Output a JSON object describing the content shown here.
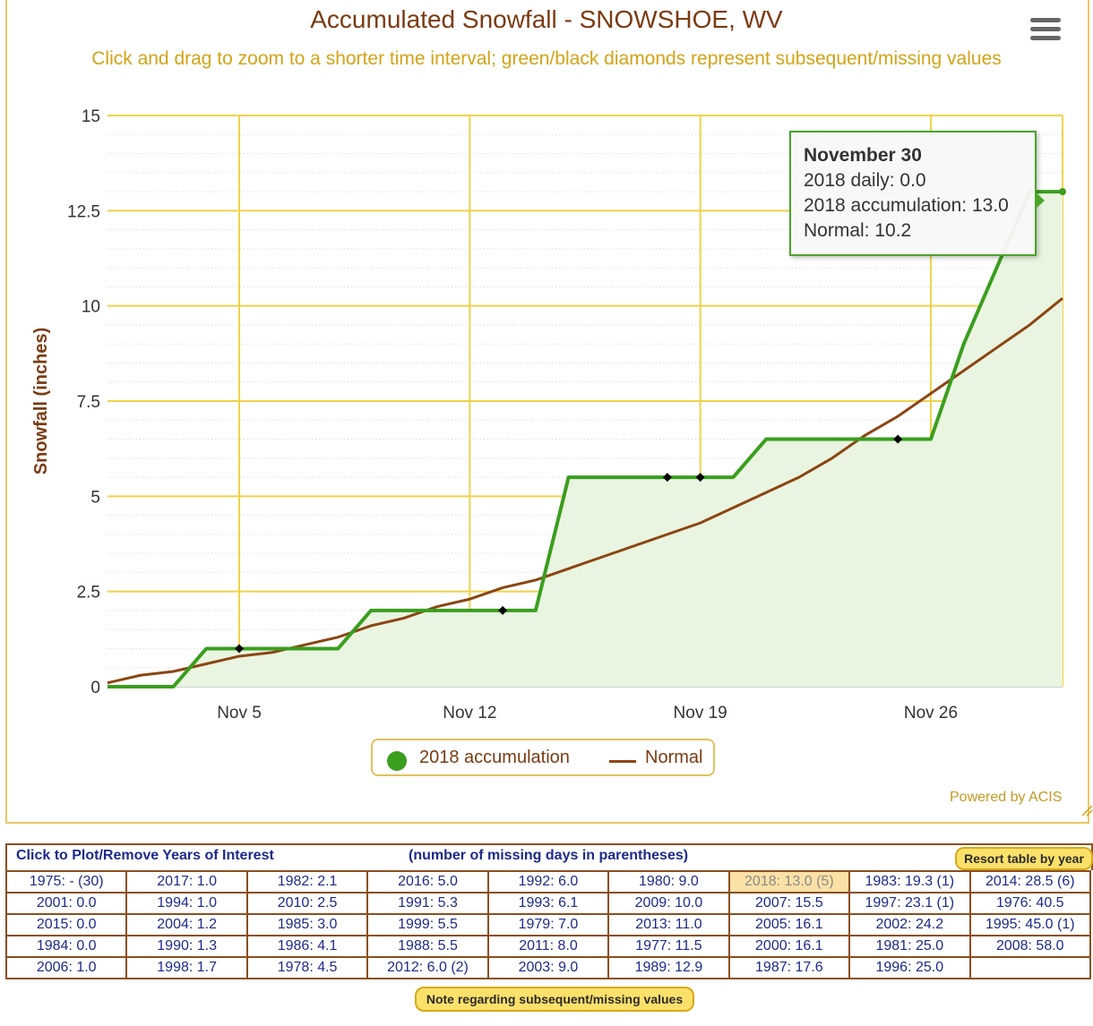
{
  "header": {
    "title": "Accumulated Snowfall - SNOWSHOE, WV",
    "subtitle": "Click and drag to zoom to a shorter time interval; green/black diamonds represent subsequent/missing values",
    "powered_by": "Powered by ACIS"
  },
  "colors": {
    "accumulation": "#3a9e1e",
    "accumulation_fill": "#e9f5e0",
    "normal": "#8b4513",
    "grid": "#f0d24a",
    "title": "#7b3b12",
    "subtitle": "#d3a316"
  },
  "legend": {
    "accumulation_label": "2018 accumulation",
    "normal_label": "Normal"
  },
  "tooltip": {
    "date": "November 30",
    "daily": "2018 daily: 0.0",
    "accumulation": "2018 accumulation: 13.0",
    "normal": "Normal: 10.2"
  },
  "chart_data": {
    "type": "line",
    "title": "Accumulated Snowfall - SNOWSHOE, WV",
    "ylabel": "Snowfall (inches)",
    "xlabel": "",
    "ylim": [
      0,
      15
    ],
    "xlim": [
      "2018-11-01",
      "2018-11-30"
    ],
    "y_ticks": [
      0,
      2.5,
      5,
      7.5,
      10,
      12.5,
      15
    ],
    "y_tick_labels": [
      "0",
      "2.5",
      "5",
      "7.5",
      "10",
      "12.5",
      "15"
    ],
    "x_ticks": [
      "2018-11-05",
      "2018-11-12",
      "2018-11-19",
      "2018-11-26"
    ],
    "x_tick_labels": [
      "Nov 5",
      "Nov 12",
      "Nov 19",
      "Nov 26"
    ],
    "grid": true,
    "legend_position": "bottom-center",
    "x": [
      "2018-11-01",
      "2018-11-02",
      "2018-11-03",
      "2018-11-04",
      "2018-11-05",
      "2018-11-06",
      "2018-11-07",
      "2018-11-08",
      "2018-11-09",
      "2018-11-10",
      "2018-11-11",
      "2018-11-12",
      "2018-11-13",
      "2018-11-14",
      "2018-11-15",
      "2018-11-16",
      "2018-11-17",
      "2018-11-18",
      "2018-11-19",
      "2018-11-20",
      "2018-11-21",
      "2018-11-22",
      "2018-11-23",
      "2018-11-24",
      "2018-11-25",
      "2018-11-26",
      "2018-11-27",
      "2018-11-28",
      "2018-11-29",
      "2018-11-30"
    ],
    "series": [
      {
        "name": "2018 accumulation",
        "values": [
          0,
          0,
          0,
          1.0,
          1.0,
          1.0,
          1.0,
          1.0,
          2.0,
          2.0,
          2.0,
          2.0,
          2.0,
          2.0,
          5.5,
          5.5,
          5.5,
          5.5,
          5.5,
          5.5,
          6.5,
          6.5,
          6.5,
          6.5,
          6.5,
          6.5,
          9.0,
          11.0,
          13.0,
          13.0
        ]
      },
      {
        "name": "Normal",
        "values": [
          0.1,
          0.3,
          0.4,
          0.6,
          0.8,
          0.9,
          1.1,
          1.3,
          1.6,
          1.8,
          2.1,
          2.3,
          2.6,
          2.8,
          3.1,
          3.4,
          3.7,
          4.0,
          4.3,
          4.7,
          5.1,
          5.5,
          6.0,
          6.6,
          7.1,
          7.7,
          8.3,
          8.9,
          9.5,
          10.2
        ]
      }
    ],
    "missing_markers": [
      {
        "x": "2018-11-05",
        "y": 1.0
      },
      {
        "x": "2018-11-13",
        "y": 2.0
      },
      {
        "x": "2018-11-18",
        "y": 5.5
      },
      {
        "x": "2018-11-19",
        "y": 5.5
      },
      {
        "x": "2018-11-25",
        "y": 6.5
      }
    ]
  },
  "table": {
    "header_left": "Click to Plot/Remove Years of Interest",
    "header_center": "(number of missing days in parentheses)",
    "resort_button": "Resort table by year",
    "selected": "2018: 13.0 (5)",
    "rows": [
      [
        "1975: - (30)",
        "2017: 1.0",
        "1982: 2.1",
        "2016: 5.0",
        "1992: 6.0",
        "1980: 9.0",
        "2018: 13.0 (5)",
        "1983: 19.3 (1)",
        "2014: 28.5 (6)"
      ],
      [
        "2001: 0.0",
        "1994: 1.0",
        "2010: 2.5",
        "1991: 5.3",
        "1993: 6.1",
        "2009: 10.0",
        "2007: 15.5",
        "1997: 23.1 (1)",
        "1976: 40.5"
      ],
      [
        "2015: 0.0",
        "2004: 1.2",
        "1985: 3.0",
        "1999: 5.5",
        "1979: 7.0",
        "2013: 11.0",
        "2005: 16.1",
        "2002: 24.2",
        "1995: 45.0 (1)"
      ],
      [
        "1984: 0.0",
        "1990: 1.3",
        "1986: 4.1",
        "1988: 5.5",
        "2011: 8.0",
        "1977: 11.5",
        "2000: 16.1",
        "1981: 25.0",
        "2008: 58.0"
      ],
      [
        "2006: 1.0",
        "1998: 1.7",
        "1978: 4.5",
        "2012: 6.0 (2)",
        "2003: 9.0",
        "1989: 12.9",
        "1987: 17.6",
        "1996: 25.0",
        ""
      ]
    ],
    "note_button": "Note regarding subsequent/missing values"
  }
}
